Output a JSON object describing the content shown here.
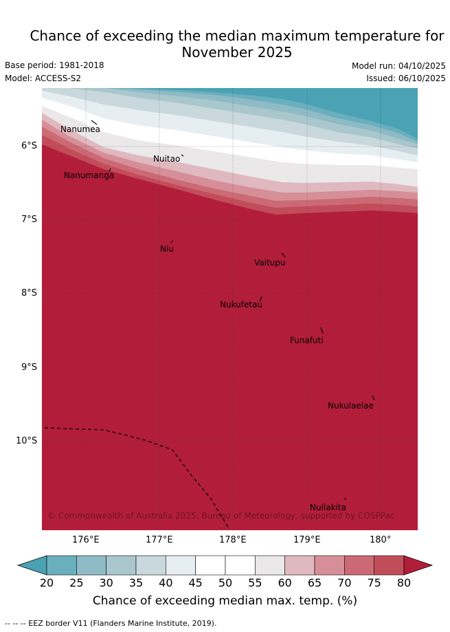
{
  "title": {
    "line1": "Chance of exceeding the median maximum temperature for",
    "line2": "November 2025"
  },
  "meta": {
    "base_period": "Base period: 1981-2018",
    "model": "Model: ACCESS-S2",
    "model_run": "Model run: 04/10/2025",
    "issued": "Issued: 06/10/2025"
  },
  "axes": {
    "lat_labels": [
      "6°S",
      "7°S",
      "8°S",
      "9°S",
      "10°S"
    ],
    "lon_labels": [
      "176°E",
      "177°E",
      "178°E",
      "179°E",
      "180°"
    ]
  },
  "places": [
    {
      "name": "Nanumea"
    },
    {
      "name": "Nuitao"
    },
    {
      "name": "Nanumanga"
    },
    {
      "name": "Niu"
    },
    {
      "name": "Vaitupu"
    },
    {
      "name": "Nukufetau"
    },
    {
      "name": "Funafuti"
    },
    {
      "name": "Nukulaelae"
    },
    {
      "name": "Nuilakita"
    }
  ],
  "copyright": "© Commonwealth of Australia 2025, Bureau of Meteorology, supported by COSPPac",
  "colorbar": {
    "ticks": [
      "20",
      "25",
      "30",
      "35",
      "40",
      "45",
      "50",
      "55",
      "60",
      "65",
      "70",
      "75",
      "80"
    ],
    "colors": [
      "#4aa2b4",
      "#6aafbd",
      "#8ebbc5",
      "#a9c7cc",
      "#c9d8dd",
      "#e7eef1",
      "#ffffff",
      "#ffffff",
      "#ebe8ea",
      "#e0b8c0",
      "#d68f98",
      "#cb6a75",
      "#c24d5a",
      "#b21e3a"
    ],
    "label": "Chance of exceeding median max. temp. (%)"
  },
  "footnote": "--  --  -- EEZ border V11 (Flanders Marine Institute, 2019)."
}
